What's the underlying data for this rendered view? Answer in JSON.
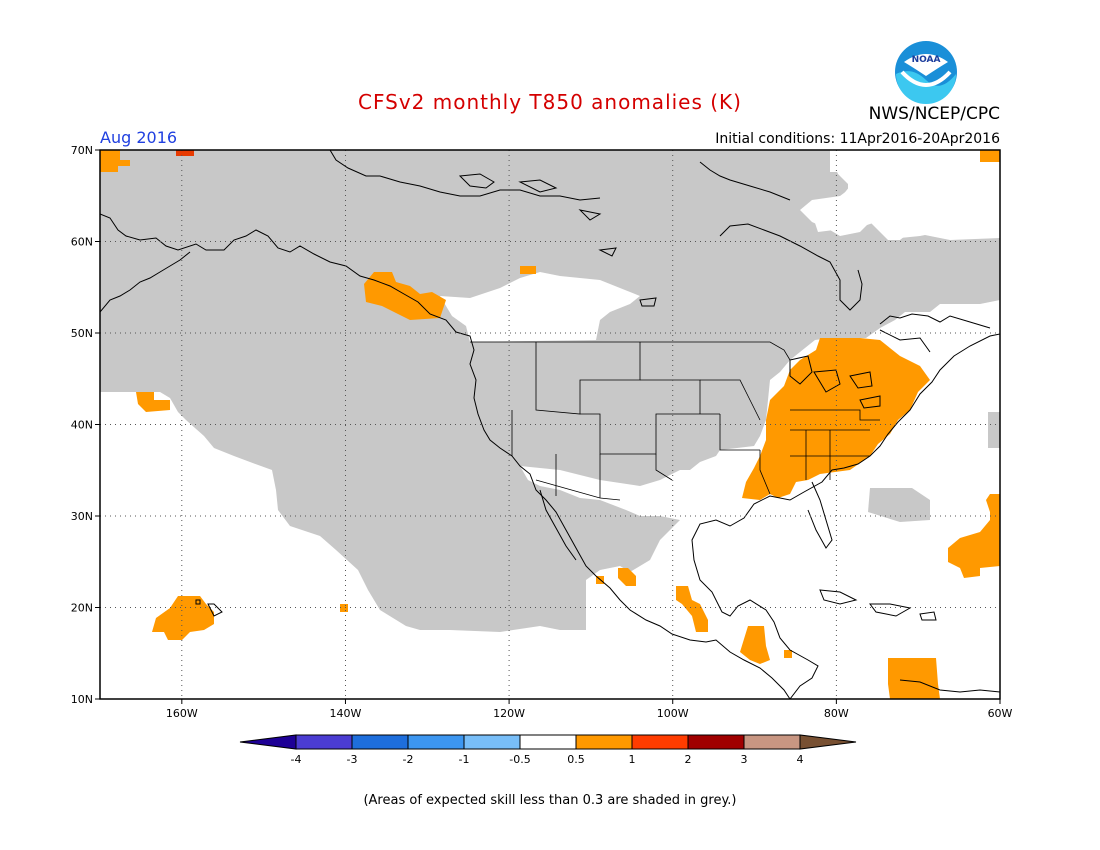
{
  "title": "CFSv2 monthly T850 anomalies (K)",
  "period": "Aug 2016",
  "initial_conditions": "Initial conditions: 11Apr2016-20Apr2016",
  "agency": "NWS/NCEP/CPC",
  "logo_text": "NOAA",
  "footnote": "(Areas of expected skill less than 0.3 are shaded in grey.)",
  "map": {
    "lon_range": [
      -170,
      -60
    ],
    "lat_range": [
      10,
      70
    ],
    "lat_ticks": [
      {
        "value": 70,
        "label": "70N"
      },
      {
        "value": 60,
        "label": "60N"
      },
      {
        "value": 50,
        "label": "50N"
      },
      {
        "value": 40,
        "label": "40N"
      },
      {
        "value": 30,
        "label": "30N"
      },
      {
        "value": 20,
        "label": "20N"
      },
      {
        "value": 10,
        "label": "10N"
      }
    ],
    "lon_ticks": [
      {
        "value": -160,
        "label": "160W"
      },
      {
        "value": -140,
        "label": "140W"
      },
      {
        "value": -120,
        "label": "120W"
      },
      {
        "value": -100,
        "label": "100W"
      },
      {
        "value": -80,
        "label": "80W"
      },
      {
        "value": -60,
        "label": "60W"
      }
    ],
    "low_skill_color": "#c8c8c8",
    "warm_anomaly_color": "#ff9900"
  },
  "colorbar": {
    "colors": [
      "#1e0096",
      "#4b3cd2",
      "#1e6edc",
      "#3c96f0",
      "#78bef8",
      "#ffffff",
      "#ff9900",
      "#ff3c00",
      "#a00000",
      "#c89682",
      "#785032"
    ],
    "labels": [
      "-4",
      "-3",
      "-2",
      "-1",
      "-0.5",
      "0.5",
      "1",
      "2",
      "3",
      "4"
    ]
  }
}
